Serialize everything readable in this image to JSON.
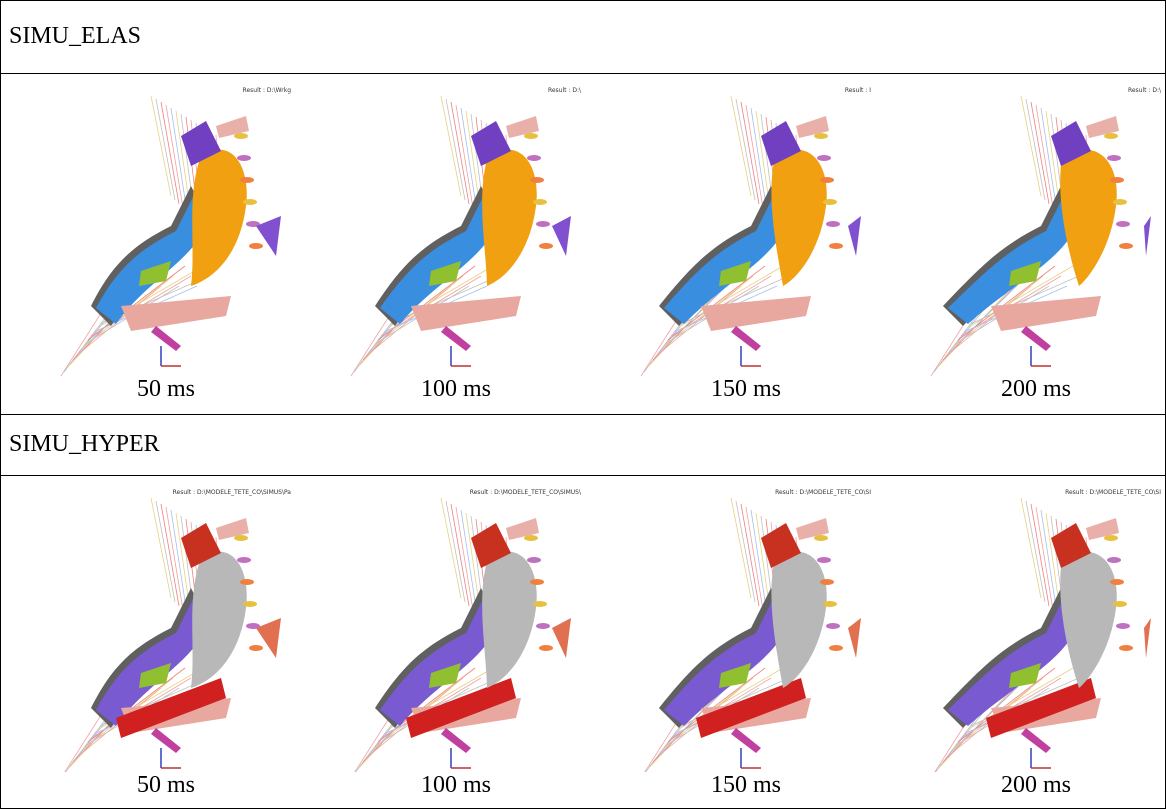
{
  "sections": [
    {
      "title": "SIMU_ELAS",
      "panels": [
        {
          "caption": "50 ms",
          "result": "Result : D:\\Wrkg"
        },
        {
          "caption": "100 ms",
          "result": "Result : D:\\"
        },
        {
          "caption": "150 ms",
          "result": "Result : I"
        },
        {
          "caption": "200 ms",
          "result": "Result : D:\\"
        }
      ]
    },
    {
      "title": "SIMU_HYPER",
      "panels": [
        {
          "caption": "50 ms",
          "result": "Result : D:\\MODELE_TETE_CO\\SIMUS\\Pa"
        },
        {
          "caption": "100 ms",
          "result": "Result : D:\\MODELE_TETE_CO\\SIMUS\\"
        },
        {
          "caption": "150 ms",
          "result": "Result : D:\\MODELE_TETE_CO\\SI"
        },
        {
          "caption": "200 ms",
          "result": "Result : D:\\MODELE_TETE_CO\\SI"
        }
      ]
    }
  ]
}
